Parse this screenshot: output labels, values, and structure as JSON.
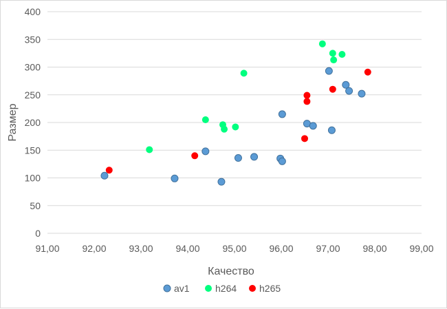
{
  "chart_data": {
    "type": "scatter",
    "title": "",
    "xlabel": "Качество",
    "ylabel": "Размер",
    "xlim": [
      91,
      99
    ],
    "ylim": [
      0,
      400
    ],
    "x_ticks": [
      "91,00",
      "92,00",
      "93,00",
      "94,00",
      "95,00",
      "96,00",
      "97,00",
      "98,00",
      "99,00"
    ],
    "y_ticks": [
      "0",
      "50",
      "100",
      "150",
      "200",
      "250",
      "300",
      "350",
      "400"
    ],
    "grid": "horizontal",
    "legend_position": "bottom",
    "series": [
      {
        "name": "av1",
        "color": "#5b9bd5",
        "points": [
          [
            92.22,
            104
          ],
          [
            93.72,
            99
          ],
          [
            94.38,
            148
          ],
          [
            94.72,
            93
          ],
          [
            95.08,
            136
          ],
          [
            95.42,
            138
          ],
          [
            95.98,
            135
          ],
          [
            96.02,
            130
          ],
          [
            96.02,
            215
          ],
          [
            96.55,
            198
          ],
          [
            96.68,
            194
          ],
          [
            97.02,
            293
          ],
          [
            97.08,
            186
          ],
          [
            97.38,
            268
          ],
          [
            97.45,
            257
          ],
          [
            97.72,
            252
          ]
        ]
      },
      {
        "name": "h264",
        "color": "#00ff7f",
        "points": [
          [
            93.18,
            151
          ],
          [
            94.38,
            205
          ],
          [
            94.75,
            196
          ],
          [
            94.78,
            188
          ],
          [
            95.02,
            192
          ],
          [
            95.2,
            289
          ],
          [
            96.88,
            342
          ],
          [
            97.1,
            325
          ],
          [
            97.12,
            313
          ],
          [
            97.3,
            323
          ]
        ]
      },
      {
        "name": "h265",
        "color": "#ff0000",
        "points": [
          [
            92.32,
            114
          ],
          [
            94.15,
            140
          ],
          [
            96.5,
            171
          ],
          [
            96.55,
            249
          ],
          [
            96.55,
            238
          ],
          [
            97.1,
            260
          ],
          [
            97.85,
            291
          ]
        ]
      }
    ]
  }
}
